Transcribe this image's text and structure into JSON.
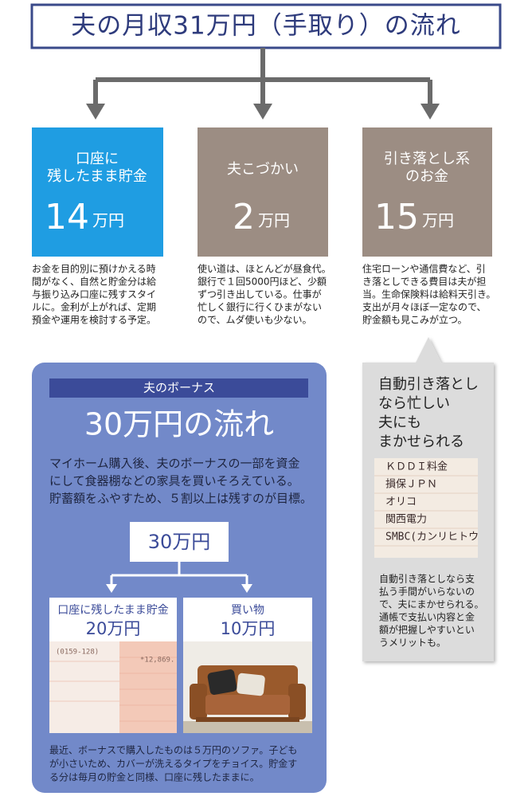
{
  "title": "夫の月収31万円（手取り）の流れ",
  "columns": [
    {
      "label": [
        "口座に",
        "残したまま貯金"
      ],
      "amount": "14",
      "unit": "万円",
      "description": [
        "お金を目的別に預けかえる時",
        "間がなく、自然と貯金分は給",
        "与振り込み口座に残すスタイ",
        "ルに。金利が上がれば、定期",
        "預金や運用を検討する予定。"
      ]
    },
    {
      "label": [
        "夫こづかい"
      ],
      "amount": "2",
      "unit": "万円",
      "description": [
        "使い道は、ほとんどが昼食代。",
        "銀行で１回5000円ほど、少額",
        "ずつ引き出している。仕事が",
        "忙しく銀行に行くひまがない",
        "ので、ムダ使いも少ない。"
      ]
    },
    {
      "label": [
        "引き落とし系",
        "のお金"
      ],
      "amount": "15",
      "unit": "万円",
      "description": [
        "住宅ローンや通信費など、引",
        "き落としできる費目は夫が担",
        "当。生命保険料は給料天引き。",
        "支出が月々ほぼ一定なので、",
        "貯金額も見こみが立つ。"
      ]
    }
  ],
  "bonus": {
    "header": "夫のボーナス",
    "title": "30万円の流れ",
    "intro": [
      "マイホーム購入後、夫のボーナスの一部を資金",
      "にして食器棚などの家具を買いそろえている。",
      "貯蓄額をふやすため、５割以上は残すのが目標。"
    ],
    "total": "30万円",
    "branches": [
      {
        "label": "口座に残したまま貯金",
        "amount": "20万円"
      },
      {
        "label": "買い物",
        "amount": "10万円"
      }
    ],
    "passbook_text": [
      "(0159-128)",
      "*12,869."
    ],
    "note": [
      "最近、ボーナスで購入したものは５万円のソファ。子ども",
      "が小さいため、カバーが洗えるタイプをチョイス。貯金す",
      "る分は毎月の貯金と同様、口座に残したままに。"
    ]
  },
  "callout": {
    "heading": [
      "自動引き落とし",
      "なら忙しい",
      "夫にも",
      "まかせられる"
    ],
    "statement_rows": [
      "ＫＤＤＩ料金",
      "損保ＪＰＮ",
      "オリコ",
      "関西電力",
      "SMBC(カンリヒトウ"
    ],
    "description": [
      "自動引き落としなら支",
      "払う手間がいらないの",
      "で、夫にまかせられる。",
      "通帳で支払い内容と金",
      "額が把握しやすいとい",
      "うメリットも。"
    ]
  }
}
